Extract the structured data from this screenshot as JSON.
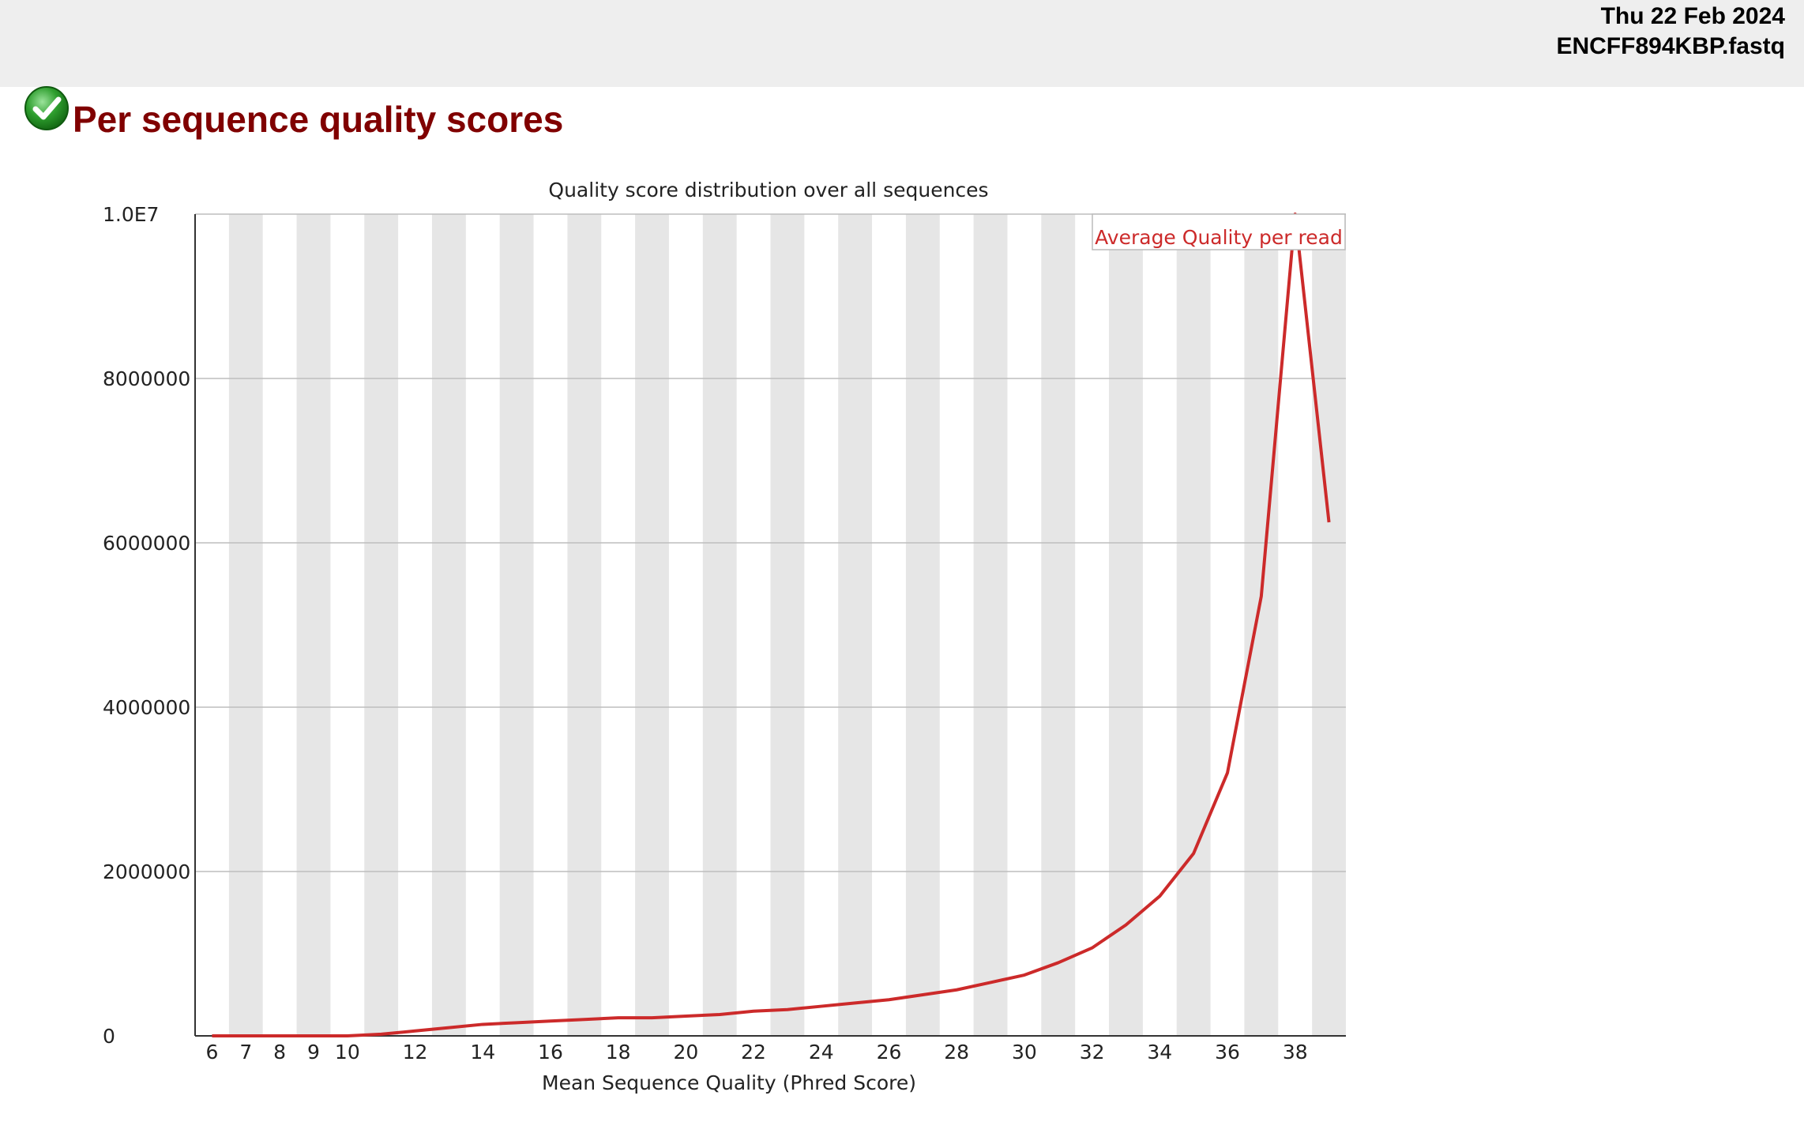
{
  "header": {
    "date": "Thu 22 Feb 2024",
    "filename": "ENCFF894KBP.fastq"
  },
  "section": {
    "title": "Per sequence quality scores",
    "status_icon": "pass-check-icon",
    "status_color": "#2e9e2e"
  },
  "chart_data": {
    "type": "line",
    "title": "Quality score distribution over all sequences",
    "xlabel": "Mean Sequence Quality (Phred Score)",
    "ylabel": "",
    "xlim": [
      5.5,
      39.5
    ],
    "ylim": [
      0,
      10000000
    ],
    "x_ticks": [
      "6",
      "7",
      "8",
      "9",
      "10",
      "12",
      "14",
      "16",
      "18",
      "20",
      "22",
      "24",
      "26",
      "28",
      "30",
      "32",
      "34",
      "36",
      "38"
    ],
    "y_ticks": [
      "0",
      "2000000",
      "4000000",
      "6000000",
      "8000000",
      "1.0E7"
    ],
    "grid": true,
    "legend": "top-right",
    "line_color": "#cc2a2a",
    "band_color": "#e6e6e6",
    "series": [
      {
        "name": "Average Quality per read",
        "x": [
          6,
          7,
          8,
          9,
          10,
          11,
          12,
          13,
          14,
          15,
          16,
          17,
          18,
          19,
          20,
          21,
          22,
          23,
          24,
          25,
          26,
          27,
          28,
          29,
          30,
          31,
          32,
          33,
          34,
          35,
          36,
          37,
          38,
          39
        ],
        "y": [
          0,
          0,
          0,
          0,
          0,
          20000,
          60000,
          100000,
          140000,
          160000,
          180000,
          200000,
          220000,
          220000,
          240000,
          260000,
          300000,
          320000,
          360000,
          400000,
          440000,
          500000,
          560000,
          650000,
          740000,
          890000,
          1070000,
          1350000,
          1700000,
          2220000,
          3200000,
          5350000,
          10000000,
          6250000
        ]
      }
    ]
  }
}
